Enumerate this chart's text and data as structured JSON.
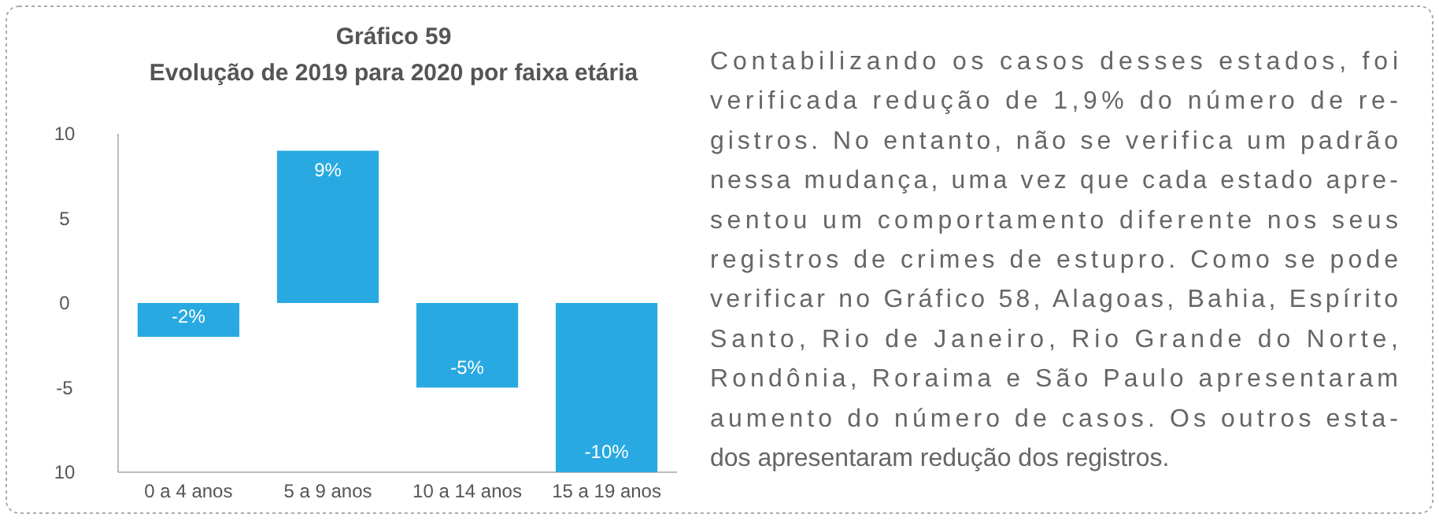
{
  "chart_data": [
    {
      "type": "bar",
      "title": "Gráfico 59",
      "subtitle": "Evolução de 2019 para 2020 por faixa etária",
      "categories": [
        "0 a 4 anos",
        "5 a 9 anos",
        "10 a 14 anos",
        "15 a 19 anos"
      ],
      "values": [
        -2,
        9,
        -5,
        -10
      ],
      "value_labels": [
        "-2%",
        "9%",
        "-5%",
        "-10%"
      ],
      "color": "#29a9e1",
      "ylim": [
        -10,
        10
      ],
      "yticks": [
        {
          "value": -10,
          "label": "10"
        },
        -5,
        0,
        5,
        10
      ],
      "grid": false
    },
    {
      "type": "other",
      "annotations": [
        "Contabilizando os casos desses estados, foi",
        "verificada redução de 1,9% do número de re-",
        "gistros. No entanto, não se verifica um padrão",
        "nessa mudança, uma vez que cada estado apre-",
        "sentou um comportamento diferente nos seus",
        "registros de crimes de estupro. Como se pode",
        "verificar no Gráfico 58, Alagoas, Bahia, Espírito",
        "Santo, Rio de Janeiro, Rio Grande do Norte,",
        "Rondônia, Roraima e São Paulo apresentaram",
        "aumento do número de casos. Os outros esta-",
        "dos apresentaram redução dos registros."
      ]
    }
  ]
}
